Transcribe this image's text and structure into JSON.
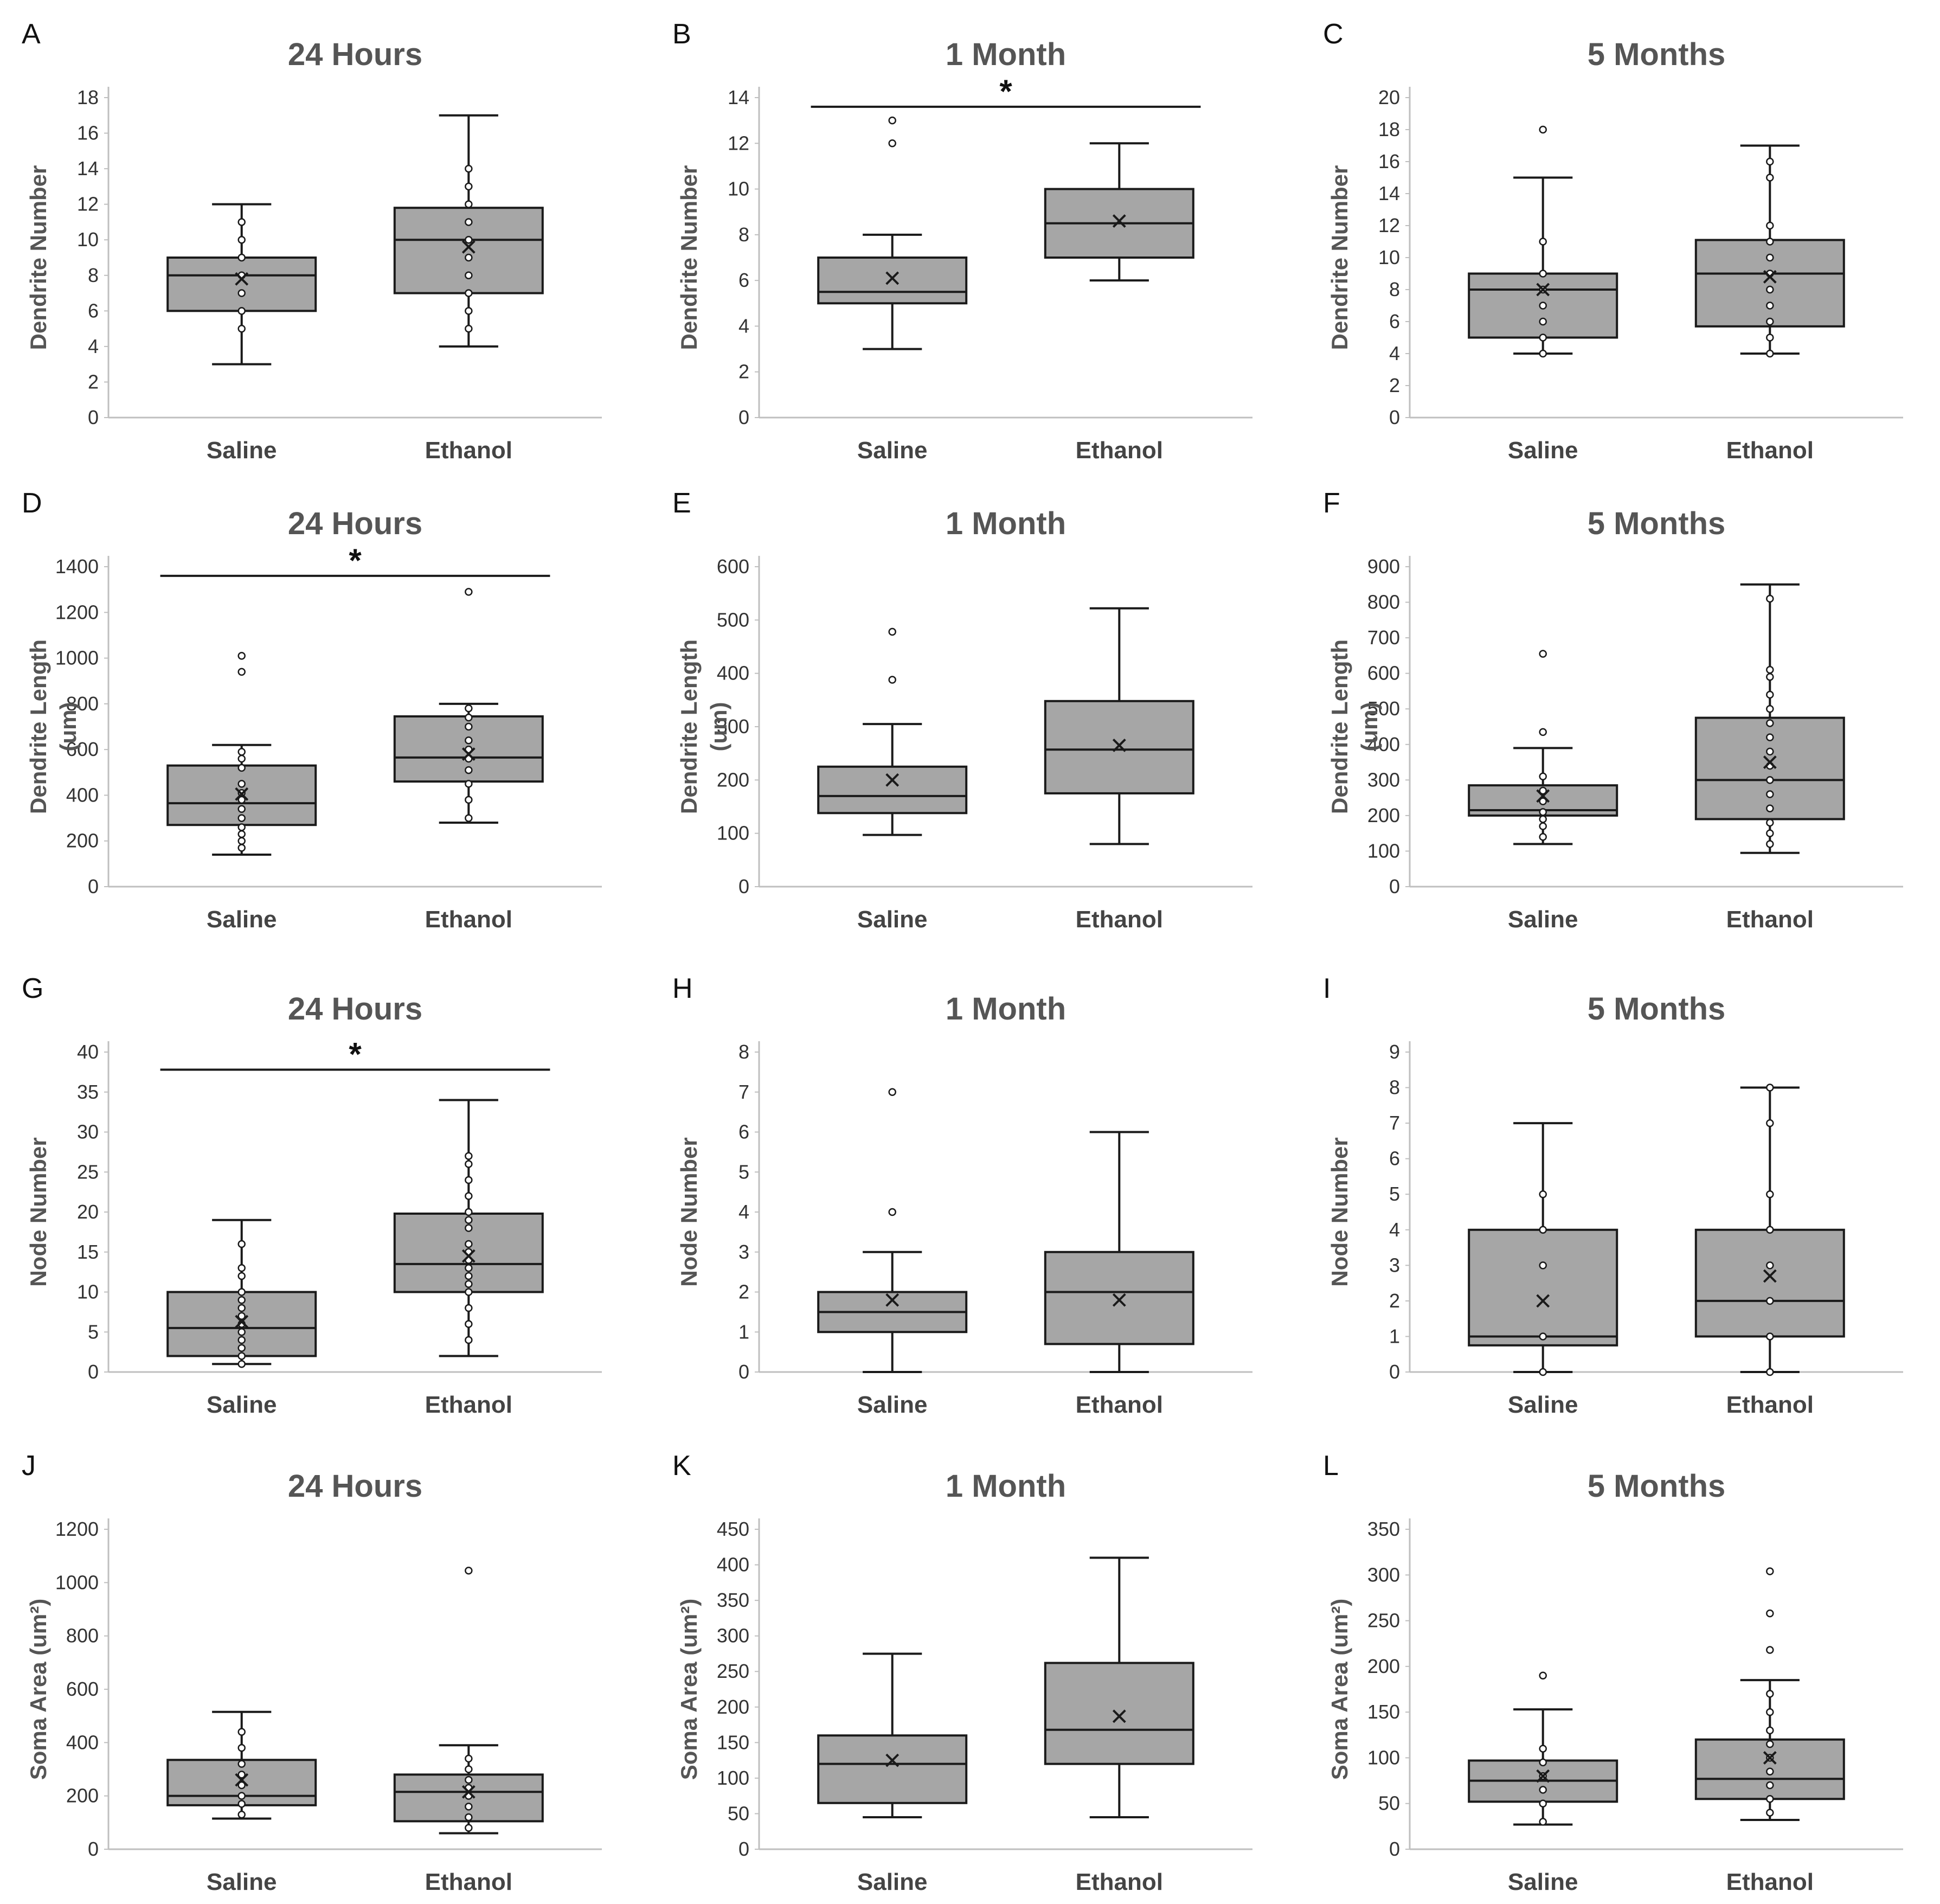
{
  "colors": {
    "box_fill": "#a6a6a6",
    "stroke": "#1a1a1a",
    "axis": "#bfbfbf",
    "title": "#555555"
  },
  "chart_data": [
    {
      "panel": "A",
      "type": "box",
      "title": "24 Hours",
      "ylabel": "Dendrite Number",
      "categories": [
        "Saline",
        "Ethanol"
      ],
      "ylim": [
        0,
        18
      ],
      "ytick_step": 2,
      "boxes": [
        {
          "category": "Saline",
          "min": 3,
          "q1": 6,
          "median": 8,
          "q3": 9,
          "max": 12,
          "mean": 7.8,
          "points": [
            5,
            6,
            7,
            8,
            9,
            10,
            11
          ],
          "outliers": []
        },
        {
          "category": "Ethanol",
          "min": 4,
          "q1": 7,
          "median": 10,
          "q3": 11.8,
          "max": 17,
          "mean": 9.6,
          "points": [
            5,
            6,
            7,
            8,
            9,
            10,
            11,
            12,
            13,
            14
          ],
          "outliers": []
        }
      ],
      "significance": null
    },
    {
      "panel": "B",
      "type": "box",
      "title": "1 Month",
      "ylabel": "Dendrite Number",
      "categories": [
        "Saline",
        "Ethanol"
      ],
      "ylim": [
        0,
        14
      ],
      "ytick_step": 2,
      "boxes": [
        {
          "category": "Saline",
          "min": 3,
          "q1": 5,
          "median": 5.5,
          "q3": 7,
          "max": 8,
          "mean": 6.1,
          "points": [],
          "outliers": [
            12,
            13
          ]
        },
        {
          "category": "Ethanol",
          "min": 6,
          "q1": 7,
          "median": 8.5,
          "q3": 10,
          "max": 12,
          "mean": 8.6,
          "points": [],
          "outliers": []
        }
      ],
      "significance": {
        "label": "*",
        "y": 13.6
      }
    },
    {
      "panel": "C",
      "type": "box",
      "title": "5 Months",
      "ylabel": "Dendrite Number",
      "categories": [
        "Saline",
        "Ethanol"
      ],
      "ylim": [
        0,
        20
      ],
      "ytick_step": 2,
      "boxes": [
        {
          "category": "Saline",
          "min": 4,
          "q1": 5,
          "median": 8,
          "q3": 9,
          "max": 15,
          "mean": 8,
          "points": [
            4,
            5,
            6,
            7,
            8,
            9,
            11
          ],
          "outliers": [
            18
          ]
        },
        {
          "category": "Ethanol",
          "min": 4,
          "q1": 5.7,
          "median": 9,
          "q3": 11.1,
          "max": 17,
          "mean": 8.8,
          "points": [
            4,
            5,
            6,
            7,
            8,
            9,
            10,
            11,
            12,
            15,
            16
          ],
          "outliers": []
        }
      ],
      "significance": null
    },
    {
      "panel": "D",
      "type": "box",
      "title": "24 Hours",
      "ylabel": "Dendrite Length",
      "ylabel2": "(um)",
      "categories": [
        "Saline",
        "Ethanol"
      ],
      "ylim": [
        0,
        1400
      ],
      "ytick_step": 200,
      "boxes": [
        {
          "category": "Saline",
          "min": 140,
          "q1": 270,
          "median": 365,
          "q3": 530,
          "max": 620,
          "mean": 405,
          "points": [
            170,
            200,
            230,
            260,
            300,
            340,
            380,
            410,
            450,
            520,
            560,
            590
          ],
          "outliers": [
            940,
            1010
          ]
        },
        {
          "category": "Ethanol",
          "min": 280,
          "q1": 460,
          "median": 565,
          "q3": 745,
          "max": 800,
          "mean": 580,
          "points": [
            300,
            380,
            450,
            510,
            560,
            600,
            640,
            700,
            740,
            780
          ],
          "outliers": [
            1290
          ]
        }
      ],
      "significance": {
        "label": "*",
        "y": 1360
      }
    },
    {
      "panel": "E",
      "type": "box",
      "title": "1 Month",
      "ylabel": "Dendrite Length",
      "ylabel2": "(um)",
      "categories": [
        "Saline",
        "Ethanol"
      ],
      "ylim": [
        0,
        600
      ],
      "ytick_step": 100,
      "boxes": [
        {
          "category": "Saline",
          "min": 97,
          "q1": 138,
          "median": 170,
          "q3": 225,
          "max": 305,
          "mean": 200,
          "points": [],
          "outliers": [
            388,
            478
          ]
        },
        {
          "category": "Ethanol",
          "min": 80,
          "q1": 175,
          "median": 257,
          "q3": 348,
          "max": 522,
          "mean": 265,
          "points": [],
          "outliers": []
        }
      ],
      "significance": null
    },
    {
      "panel": "F",
      "type": "box",
      "title": "5 Months",
      "ylabel": "Dendrite Length",
      "ylabel2": "(um)",
      "categories": [
        "Saline",
        "Ethanol"
      ],
      "ylim": [
        0,
        900
      ],
      "ytick_step": 100,
      "boxes": [
        {
          "category": "Saline",
          "min": 120,
          "q1": 200,
          "median": 215,
          "q3": 285,
          "max": 390,
          "mean": 255,
          "points": [
            140,
            170,
            190,
            210,
            240,
            270,
            310
          ],
          "outliers": [
            435,
            655
          ]
        },
        {
          "category": "Ethanol",
          "min": 95,
          "q1": 190,
          "median": 300,
          "q3": 475,
          "max": 850,
          "mean": 350,
          "points": [
            120,
            150,
            180,
            220,
            260,
            300,
            340,
            380,
            420,
            460,
            500,
            540,
            590,
            610,
            810
          ],
          "outliers": []
        }
      ],
      "significance": null
    },
    {
      "panel": "G",
      "type": "box",
      "title": "24 Hours",
      "ylabel": "Node Number",
      "categories": [
        "Saline",
        "Ethanol"
      ],
      "ylim": [
        0,
        40
      ],
      "ytick_step": 5,
      "boxes": [
        {
          "category": "Saline",
          "min": 1,
          "q1": 2,
          "median": 5.5,
          "q3": 10,
          "max": 19,
          "mean": 6.3,
          "points": [
            1,
            2,
            3,
            4,
            5,
            6,
            7,
            8,
            9,
            10,
            12,
            13,
            16
          ],
          "outliers": []
        },
        {
          "category": "Ethanol",
          "min": 2,
          "q1": 10,
          "median": 13.5,
          "q3": 19.8,
          "max": 34,
          "mean": 14.5,
          "points": [
            4,
            6,
            8,
            10,
            11,
            12,
            13,
            14,
            15,
            16,
            18,
            19,
            20,
            22,
            24,
            26,
            27
          ],
          "outliers": []
        }
      ],
      "significance": {
        "label": "*",
        "y": 37.8
      }
    },
    {
      "panel": "H",
      "type": "box",
      "title": "1 Month",
      "ylabel": "Node Number",
      "categories": [
        "Saline",
        "Ethanol"
      ],
      "ylim": [
        0,
        8
      ],
      "ytick_step": 1,
      "boxes": [
        {
          "category": "Saline",
          "min": 0,
          "q1": 1,
          "median": 1.5,
          "q3": 2,
          "max": 3,
          "mean": 1.8,
          "points": [],
          "outliers": [
            4,
            7
          ]
        },
        {
          "category": "Ethanol",
          "min": 0,
          "q1": 0.7,
          "median": 2,
          "q3": 3,
          "max": 6,
          "mean": 1.8,
          "points": [],
          "outliers": []
        }
      ],
      "significance": null
    },
    {
      "panel": "I",
      "type": "box",
      "title": "5 Months",
      "ylabel": "Node Number",
      "categories": [
        "Saline",
        "Ethanol"
      ],
      "ylim": [
        0,
        9
      ],
      "ytick_step": 1,
      "boxes": [
        {
          "category": "Saline",
          "min": 0,
          "q1": 0.75,
          "median": 1,
          "q3": 4,
          "max": 7,
          "mean": 2,
          "points": [
            0,
            1,
            3,
            4,
            5
          ],
          "outliers": []
        },
        {
          "category": "Ethanol",
          "min": 0,
          "q1": 1,
          "median": 2,
          "q3": 4,
          "max": 8,
          "mean": 2.7,
          "points": [
            0,
            1,
            2,
            3,
            4,
            5,
            7,
            8
          ],
          "outliers": []
        }
      ],
      "significance": null
    },
    {
      "panel": "J",
      "type": "box",
      "title": "24 Hours",
      "ylabel": "Soma Area (um²)",
      "categories": [
        "Saline",
        "Ethanol"
      ],
      "ylim": [
        0,
        1200
      ],
      "ytick_step": 200,
      "boxes": [
        {
          "category": "Saline",
          "min": 115,
          "q1": 165,
          "median": 200,
          "q3": 335,
          "max": 515,
          "mean": 260,
          "points": [
            130,
            170,
            200,
            240,
            280,
            320,
            380,
            440
          ],
          "outliers": []
        },
        {
          "category": "Ethanol",
          "min": 60,
          "q1": 105,
          "median": 215,
          "q3": 280,
          "max": 390,
          "mean": 215,
          "points": [
            80,
            120,
            160,
            200,
            230,
            260,
            300,
            340
          ],
          "outliers": [
            1045
          ]
        }
      ],
      "significance": null
    },
    {
      "panel": "K",
      "type": "box",
      "title": "1 Month",
      "ylabel": "Soma Area (um²)",
      "categories": [
        "Saline",
        "Ethanol"
      ],
      "ylim": [
        0,
        450
      ],
      "ytick_step": 50,
      "boxes": [
        {
          "category": "Saline",
          "min": 45,
          "q1": 65,
          "median": 120,
          "q3": 160,
          "max": 275,
          "mean": 125,
          "points": [],
          "outliers": []
        },
        {
          "category": "Ethanol",
          "min": 45,
          "q1": 120,
          "median": 168,
          "q3": 262,
          "max": 410,
          "mean": 187,
          "points": [],
          "outliers": []
        }
      ],
      "significance": null
    },
    {
      "panel": "L",
      "type": "box",
      "title": "5 Months",
      "ylabel": "Soma Area (um²)",
      "categories": [
        "Saline",
        "Ethanol"
      ],
      "ylim": [
        0,
        350
      ],
      "ytick_step": 50,
      "boxes": [
        {
          "category": "Saline",
          "min": 27,
          "q1": 52,
          "median": 75,
          "q3": 97,
          "max": 153,
          "mean": 80,
          "points": [
            30,
            50,
            65,
            80,
            95,
            110
          ],
          "outliers": [
            190
          ]
        },
        {
          "category": "Ethanol",
          "min": 32,
          "q1": 55,
          "median": 77,
          "q3": 120,
          "max": 185,
          "mean": 100,
          "points": [
            40,
            55,
            70,
            85,
            100,
            115,
            130,
            150,
            170
          ],
          "outliers": [
            218,
            258,
            304
          ]
        }
      ],
      "significance": null
    }
  ]
}
